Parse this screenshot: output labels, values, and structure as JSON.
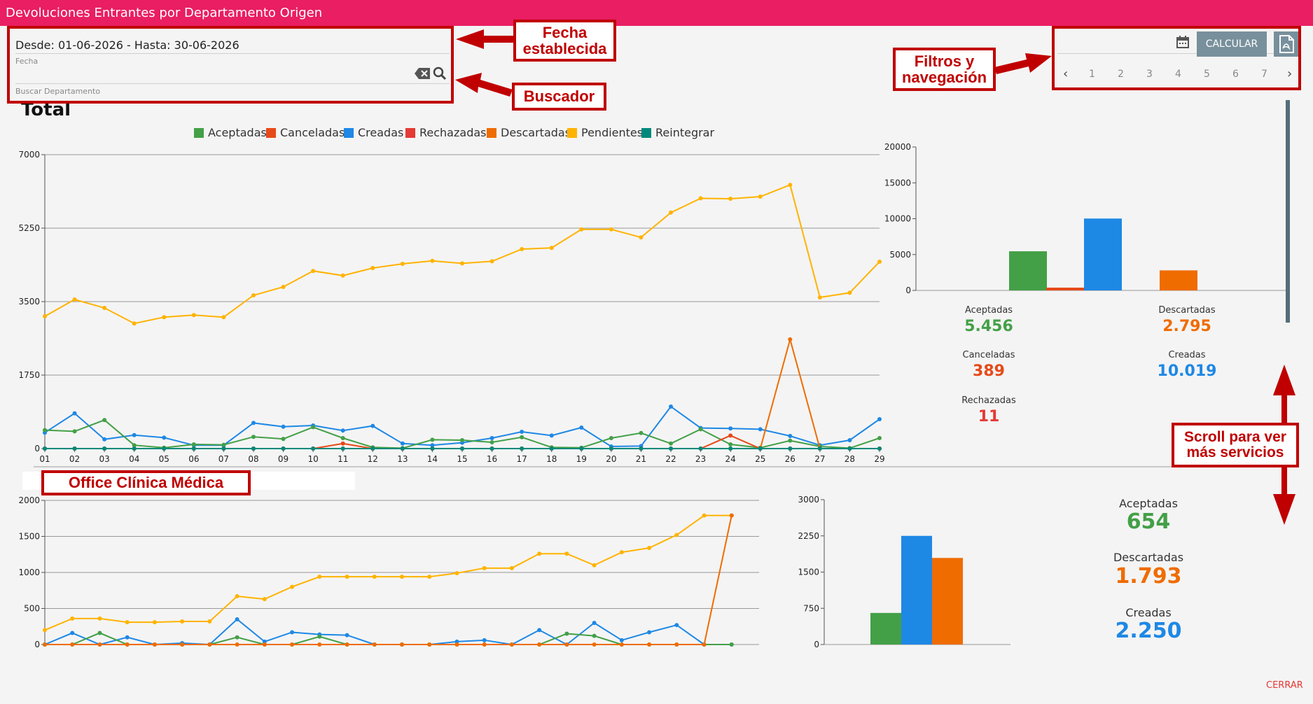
{
  "app": {
    "title": "Devoluciones Entrantes por Departamento Origen"
  },
  "filters": {
    "date_range": "Desde: 01-06-2026 - Hasta: 30-06-2026",
    "date_label": "Fecha",
    "search_placeholder": "Buscar Departamento"
  },
  "toolbar": {
    "calc_label": "CALCULAR",
    "icons": [
      "calendar-icon",
      "pdf-icon"
    ]
  },
  "pager": {
    "pages": [
      "1",
      "2",
      "3",
      "4",
      "5",
      "6",
      "7"
    ]
  },
  "annotations": {
    "fecha": "Fecha establecida",
    "buscador": "Buscador",
    "filtros": "Filtros y navegación",
    "scroll": "Scroll para ver más servicios",
    "office": "Office Clínica Médica"
  },
  "total": {
    "heading": "Total"
  },
  "footer": {
    "close_label": "CERRAR"
  },
  "colors": {
    "Aceptadas": "#43a047",
    "Canceladas": "#e64a19",
    "Creadas": "#1e88e5",
    "Rechazadas": "#e53935",
    "Descartadas": "#ef6c00",
    "Pendientes": "#ffb300",
    "Reintegrar": "#00897b"
  },
  "chart_data": [
    {
      "type": "line",
      "legend": [
        "Aceptadas",
        "Canceladas",
        "Creadas",
        "Rechazadas",
        "Descartadas",
        "Pendientes",
        "Reintegrar"
      ],
      "legend_position": "top",
      "x": [
        "01",
        "02",
        "03",
        "04",
        "05",
        "06",
        "07",
        "08",
        "09",
        "10",
        "11",
        "12",
        "13",
        "14",
        "15",
        "16",
        "17",
        "18",
        "19",
        "20",
        "21",
        "22",
        "23",
        "24",
        "25",
        "26",
        "27",
        "28",
        "29"
      ],
      "ylim": [
        0,
        7000
      ],
      "yticks": [
        "0",
        "1750",
        "3500",
        "5250",
        "7000"
      ],
      "grid": true,
      "series": [
        {
          "name": "Pendientes",
          "values": [
            3150,
            3550,
            3350,
            2980,
            3130,
            3180,
            3130,
            3650,
            3850,
            4230,
            4120,
            4300,
            4400,
            4470,
            4410,
            4460,
            4750,
            4780,
            5220,
            5220,
            5030,
            5620,
            5960,
            5950,
            6000,
            6280,
            3600,
            3710,
            4450
          ]
        },
        {
          "name": "Creadas",
          "values": [
            380,
            840,
            220,
            320,
            260,
            80,
            80,
            610,
            520,
            550,
            430,
            540,
            120,
            80,
            140,
            250,
            400,
            310,
            500,
            50,
            60,
            1000,
            490,
            480,
            460,
            300,
            80,
            200,
            700
          ]
        },
        {
          "name": "Aceptadas",
          "values": [
            440,
            410,
            680,
            80,
            20,
            100,
            90,
            280,
            230,
            510,
            250,
            30,
            10,
            210,
            200,
            150,
            270,
            30,
            20,
            250,
            370,
            120,
            460,
            100,
            20,
            190,
            50,
            10,
            250
          ]
        },
        {
          "name": "Descartadas",
          "values": [
            0,
            0,
            0,
            0,
            0,
            0,
            0,
            0,
            0,
            0,
            0,
            0,
            0,
            0,
            0,
            0,
            0,
            0,
            0,
            0,
            0,
            0,
            0,
            0,
            0,
            2600,
            0,
            0,
            0
          ]
        },
        {
          "name": "Canceladas",
          "values": [
            0,
            0,
            0,
            0,
            0,
            0,
            0,
            0,
            0,
            0,
            120,
            0,
            0,
            0,
            0,
            0,
            0,
            0,
            0,
            0,
            0,
            0,
            0,
            310,
            0,
            0,
            0,
            0,
            0
          ]
        },
        {
          "name": "Rechazadas",
          "values": [
            0,
            0,
            0,
            0,
            0,
            0,
            0,
            0,
            0,
            0,
            0,
            0,
            0,
            0,
            0,
            0,
            0,
            0,
            0,
            0,
            0,
            0,
            0,
            0,
            0,
            0,
            0,
            0,
            0
          ]
        },
        {
          "name": "Reintegrar",
          "values": [
            0,
            0,
            0,
            0,
            0,
            0,
            0,
            0,
            0,
            0,
            0,
            0,
            0,
            0,
            0,
            0,
            0,
            0,
            0,
            0,
            0,
            0,
            0,
            0,
            0,
            0,
            0,
            0,
            0
          ]
        }
      ]
    },
    {
      "type": "bar",
      "categories": [
        "Aceptadas",
        "Canceladas",
        "Creadas",
        "Descartadas"
      ],
      "values": [
        5456,
        389,
        10019,
        2795
      ],
      "ylim": [
        0,
        20000
      ],
      "yticks": [
        "0",
        "5000",
        "10000",
        "15000",
        "20000"
      ],
      "totals": [
        {
          "label": "Aceptadas",
          "value": "5.456"
        },
        {
          "label": "Canceladas",
          "value": "389"
        },
        {
          "label": "Rechazadas",
          "value": "11"
        },
        {
          "label": "Descartadas",
          "value": "2.795"
        },
        {
          "label": "Creadas",
          "value": "10.019"
        }
      ]
    },
    {
      "type": "line",
      "ylim": [
        0,
        2000
      ],
      "yticks": [
        "0",
        "500",
        "1000",
        "1500",
        "2000"
      ],
      "grid": true,
      "series": [
        {
          "name": "Pendientes",
          "values": [
            200,
            360,
            360,
            310,
            310,
            320,
            320,
            670,
            630,
            800,
            940,
            940,
            940,
            940,
            940,
            990,
            1060,
            1060,
            1260,
            1260,
            1100,
            1280,
            1340,
            1520,
            1790,
            1790
          ]
        },
        {
          "name": "Creadas",
          "values": [
            0,
            160,
            0,
            100,
            0,
            20,
            0,
            350,
            40,
            170,
            140,
            130,
            0,
            0,
            0,
            40,
            60,
            0,
            200,
            0,
            300,
            60,
            170,
            270,
            0,
            0
          ]
        },
        {
          "name": "Aceptadas",
          "values": [
            0,
            0,
            160,
            0,
            0,
            0,
            0,
            100,
            0,
            0,
            110,
            0,
            0,
            0,
            0,
            0,
            0,
            0,
            0,
            150,
            120,
            0,
            0,
            0,
            0,
            0
          ]
        },
        {
          "name": "Descartadas",
          "values": [
            0,
            0,
            0,
            0,
            0,
            0,
            0,
            0,
            0,
            0,
            0,
            0,
            0,
            0,
            0,
            0,
            0,
            0,
            0,
            0,
            0,
            0,
            0,
            0,
            0,
            1790
          ]
        }
      ]
    },
    {
      "type": "bar",
      "categories": [
        "Aceptadas",
        "Creadas",
        "Descartadas"
      ],
      "values": [
        654,
        2250,
        1793
      ],
      "ylim": [
        0,
        3000
      ],
      "yticks": [
        "0",
        "750",
        "1500",
        "2250",
        "3000"
      ],
      "totals": [
        {
          "label": "Aceptadas",
          "value": "654"
        },
        {
          "label": "Descartadas",
          "value": "1.793"
        },
        {
          "label": "Creadas",
          "value": "2.250"
        }
      ]
    }
  ]
}
